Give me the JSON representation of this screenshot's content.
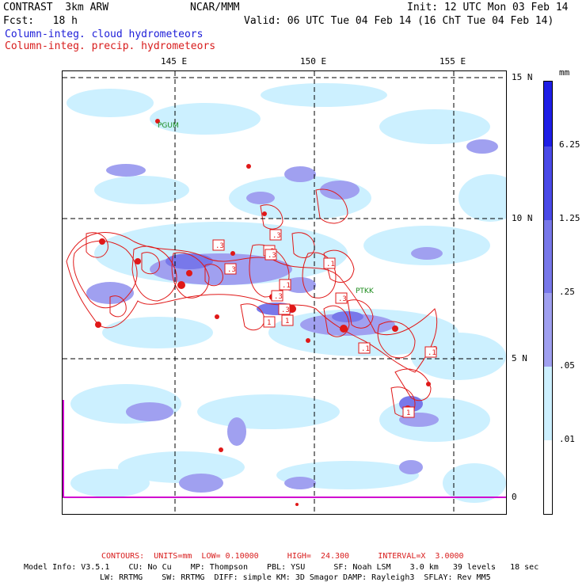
{
  "header": {
    "title_left": "CONTRAST  3km ARW",
    "title_center": "NCAR/MMM",
    "init": "Init: 12 UTC Mon 03 Feb 14",
    "fcst": "Fcst:   18 h",
    "valid": "Valid: 06 UTC Tue 04 Feb 14 (16 ChT Tue 04 Feb 14)",
    "field1": "Column-integ. cloud hydrometeors",
    "field2": "Column-integ. precip. hydrometeors"
  },
  "map": {
    "lon_labels": [
      "145 E",
      "150 E",
      "155 E"
    ],
    "lat_labels": [
      "15 N",
      "10 N",
      "5 N",
      "0"
    ],
    "stations": [
      "PGUM",
      "PTKK"
    ],
    "contour_labels": [
      ".3",
      ".3",
      ".3",
      ".3",
      ".1",
      ".1",
      ".3",
      ".3",
      ".3",
      "1",
      "1",
      ".1",
      ".3",
      ".1",
      "1",
      ".1"
    ]
  },
  "colorbar": {
    "unit": "mm",
    "levels": [
      "6.25",
      "1.25",
      ".25",
      ".05",
      ".01"
    ],
    "colors": [
      "#1e1ee6",
      "#4a4ae8",
      "#7878ea",
      "#a0a0f0",
      "#ccf0ff",
      "#ffffff"
    ]
  },
  "footer": {
    "contours": "CONTOURS:  UNITS=mm  LOW= 0.10000      HIGH=  24.300      INTERVAL=X  3.0000",
    "model_line1": "Model Info: V3.5.1    CU: No Cu    MP: Thompson    PBL: YSU      SF: Noah LSM    3.0 km   39 levels   18 sec",
    "model_line2": "LW: RRTMG    SW: RRTMG  DIFF: simple KM: 3D Smagor DAMP: Rayleigh3  SFLAY: Rev MM5"
  }
}
